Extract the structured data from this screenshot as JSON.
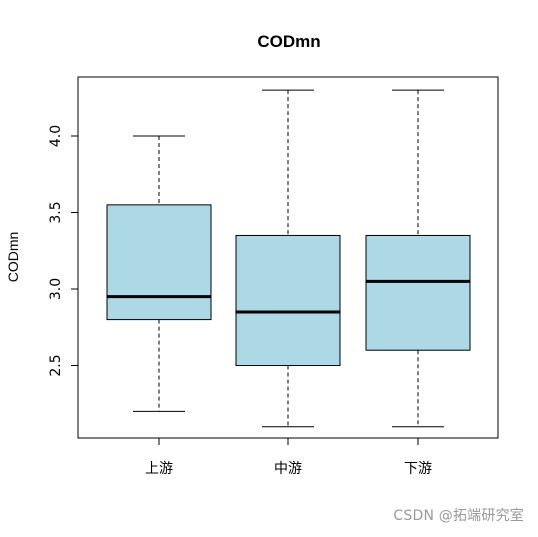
{
  "chart_data": {
    "type": "boxplot",
    "title": "CODmn",
    "xlabel": "",
    "ylabel": "CODmn",
    "ylim": [
      2.0,
      4.35
    ],
    "yticks": [
      2.5,
      3.0,
      3.5,
      4.0
    ],
    "ytick_labels": [
      "2.5",
      "3.0",
      "3.5",
      "4.0"
    ],
    "categories": [
      "上游",
      "中游",
      "下游"
    ],
    "boxes": [
      {
        "category": "上游",
        "min": 2.2,
        "q1": 2.8,
        "median": 2.95,
        "q3": 3.55,
        "max": 4.0
      },
      {
        "category": "中游",
        "min": 2.1,
        "q1": 2.5,
        "median": 2.85,
        "q3": 3.35,
        "max": 4.3
      },
      {
        "category": "下游",
        "min": 2.1,
        "q1": 2.6,
        "median": 3.05,
        "q3": 3.35,
        "max": 4.3
      }
    ],
    "box_color": "#add8e6",
    "grid": false,
    "legend": "none"
  },
  "watermark": "CSDN @拓端研究室"
}
